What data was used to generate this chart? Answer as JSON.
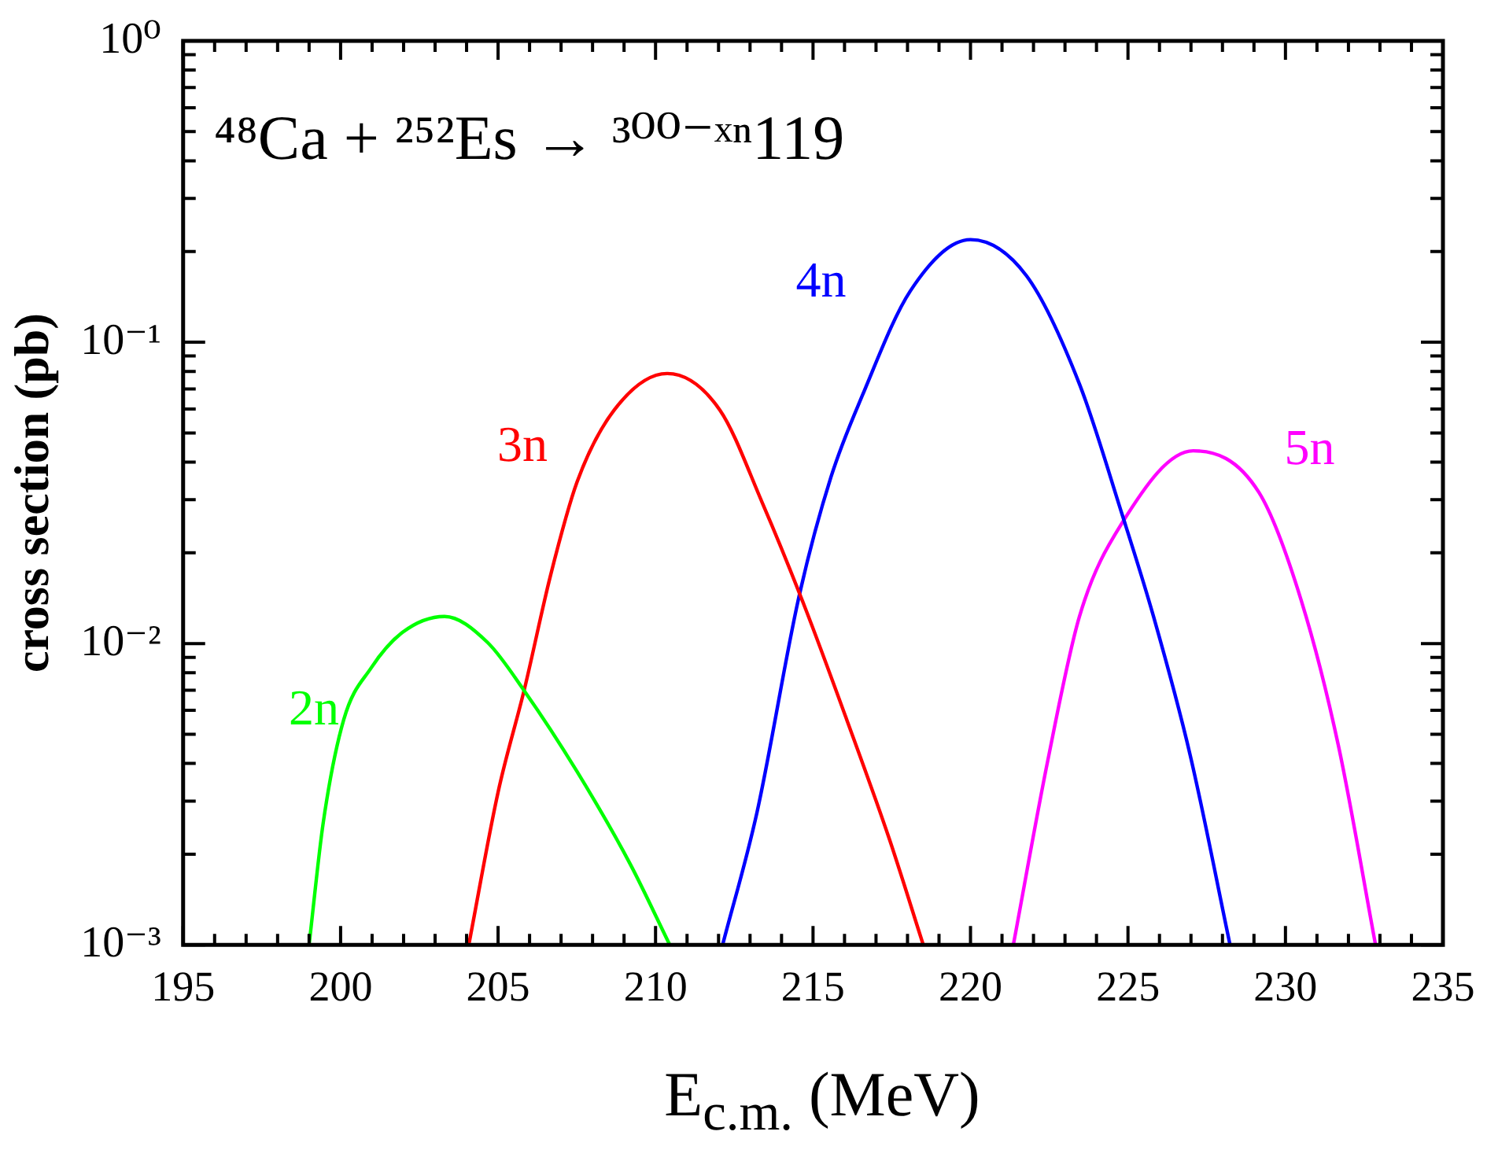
{
  "chart_data": {
    "type": "line",
    "xlabel": "E$_{c.m.}$ (MeV)",
    "ylabel": "cross section (pb)",
    "annotations": [
      "⁴⁸Ca + ²⁵²Es → ³⁰⁰⁻ˣⁿ119"
    ],
    "log": "y",
    "grid": false,
    "legend": false,
    "marker": "none",
    "line_style": "solid",
    "xlim": [
      195,
      235
    ],
    "ylim": [
      0.001,
      1
    ],
    "xticks": [
      195,
      {
        "value": 196,
        "label": null
      },
      {
        "value": 197,
        "label": null
      },
      {
        "value": 198,
        "label": null
      },
      {
        "value": 199,
        "label": null
      },
      200,
      {
        "value": 201,
        "label": null
      },
      {
        "value": 202,
        "label": null
      },
      {
        "value": 203,
        "label": null
      },
      {
        "value": 204,
        "label": null
      },
      205,
      {
        "value": 206,
        "label": null
      },
      {
        "value": 207,
        "label": null
      },
      {
        "value": 208,
        "label": null
      },
      {
        "value": 209,
        "label": null
      },
      210,
      {
        "value": 211,
        "label": null
      },
      {
        "value": 212,
        "label": null
      },
      {
        "value": 213,
        "label": null
      },
      {
        "value": 214,
        "label": null
      },
      215,
      {
        "value": 216,
        "label": null
      },
      {
        "value": 217,
        "label": null
      },
      {
        "value": 218,
        "label": null
      },
      {
        "value": 219,
        "label": null
      },
      220,
      {
        "value": 221,
        "label": null
      },
      {
        "value": 222,
        "label": null
      },
      {
        "value": 223,
        "label": null
      },
      {
        "value": 224,
        "label": null
      },
      225,
      {
        "value": 226,
        "label": null
      },
      {
        "value": 227,
        "label": null
      },
      {
        "value": 228,
        "label": null
      },
      {
        "value": 229,
        "label": null
      },
      230,
      {
        "value": 231,
        "label": null
      },
      {
        "value": 232,
        "label": null
      },
      {
        "value": 233,
        "label": null
      },
      {
        "value": 234,
        "label": null
      },
      235
    ],
    "yticks": [
      {
        "value": 0.001,
        "label": "10⁻³"
      },
      {
        "value": 0.002,
        "label": null
      },
      {
        "value": 0.003,
        "label": null
      },
      {
        "value": 0.004,
        "label": null
      },
      {
        "value": 0.005,
        "label": null
      },
      {
        "value": 0.006,
        "label": null
      },
      {
        "value": 0.007,
        "label": null
      },
      {
        "value": 0.008,
        "label": null
      },
      {
        "value": 0.009,
        "label": null
      },
      {
        "value": 0.01,
        "label": "10⁻²"
      },
      {
        "value": 0.02,
        "label": null
      },
      {
        "value": 0.03,
        "label": null
      },
      {
        "value": 0.04,
        "label": null
      },
      {
        "value": 0.05,
        "label": null
      },
      {
        "value": 0.06,
        "label": null
      },
      {
        "value": 0.07,
        "label": null
      },
      {
        "value": 0.08,
        "label": null
      },
      {
        "value": 0.09,
        "label": null
      },
      {
        "value": 0.1,
        "label": "10⁻¹"
      },
      {
        "value": 0.2,
        "label": null
      },
      {
        "value": 0.3,
        "label": null
      },
      {
        "value": 0.4,
        "label": null
      },
      {
        "value": 0.5,
        "label": null
      },
      {
        "value": 0.6,
        "label": null
      },
      {
        "value": 0.7,
        "label": null
      },
      {
        "value": 0.8,
        "label": null
      },
      {
        "value": 0.9,
        "label": null
      },
      {
        "value": 1,
        "label": "10⁰"
      }
    ],
    "series": [
      {
        "name": "2n",
        "color": "#00ff00",
        "x": [
          199.0,
          199.45,
          200.1,
          200.97,
          201.97,
          203.3,
          204.66,
          205.84,
          207.5,
          209.2,
          210.45
        ],
        "values": [
          0.001,
          0.00255,
          0.00559,
          0.0083,
          0.0109,
          0.0123,
          0.0101,
          0.00695,
          0.00377,
          0.00185,
          0.001
        ]
      },
      {
        "name": "3n",
        "color": "#ff0000",
        "x": [
          204.07,
          205.0,
          205.84,
          206.67,
          207.51,
          208.69,
          210.37,
          212.04,
          213.39,
          214.73,
          216.07,
          217.42,
          218.5
        ],
        "values": [
          0.001,
          0.00321,
          0.00708,
          0.0169,
          0.0344,
          0.0596,
          0.0787,
          0.0596,
          0.0293,
          0.0133,
          0.00559,
          0.00225,
          0.001
        ]
      },
      {
        "name": "4n",
        "color": "#0000ff",
        "x": [
          212.13,
          213.22,
          214.56,
          215.57,
          216.58,
          218.09,
          220.0,
          221.78,
          223.46,
          224.8,
          225.81,
          226.98,
          228.24
        ],
        "values": [
          0.001,
          0.00275,
          0.0144,
          0.0357,
          0.0671,
          0.148,
          0.219,
          0.166,
          0.0726,
          0.0271,
          0.0123,
          0.00424,
          0.001
        ]
      },
      {
        "name": "5n",
        "color": "#ff00ff",
        "x": [
          221.36,
          222.45,
          223.46,
          224.8,
          227.07,
          229.16,
          230.51,
          231.68,
          232.86
        ],
        "values": [
          0.001,
          0.00407,
          0.0123,
          0.025,
          0.0436,
          0.0317,
          0.0138,
          0.00459,
          0.001
        ]
      }
    ]
  }
}
